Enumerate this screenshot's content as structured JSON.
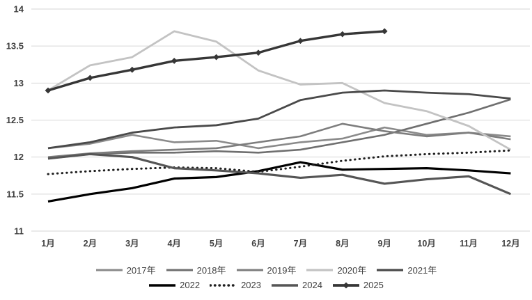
{
  "chart_data": {
    "type": "line",
    "title": "",
    "xlabel": "",
    "ylabel": "",
    "categories": [
      "1月",
      "2月",
      "3月",
      "4月",
      "5月",
      "6月",
      "7月",
      "8月",
      "9月",
      "10月",
      "11月",
      "12月"
    ],
    "y_ticks": [
      "11",
      "11.5",
      "12",
      "12.5",
      "13",
      "13.5",
      "14"
    ],
    "ylim": [
      11,
      14
    ],
    "grid": "horizontal-only",
    "gridline_color": "#d6d6d6",
    "axis_label_color": "#3f3f3f",
    "legend_position": "bottom-two-rows",
    "series": [
      {
        "name": "2017年",
        "color": "#8a8a8a",
        "style": "solid",
        "width": 2.6,
        "marker": "none",
        "legend_row": 1,
        "values": [
          12.12,
          12.18,
          12.3,
          12.2,
          12.22,
          12.12,
          12.2,
          12.25,
          12.4,
          12.3,
          12.33,
          12.28
        ]
      },
      {
        "name": "2018年",
        "color": "#6f6f6f",
        "style": "solid",
        "width": 2.6,
        "marker": "none",
        "legend_row": 1,
        "values": [
          11.98,
          12.04,
          12.06,
          12.06,
          12.08,
          12.06,
          12.1,
          12.2,
          12.3,
          12.45,
          12.6,
          12.78
        ]
      },
      {
        "name": "2019年",
        "color": "#7d7d7d",
        "style": "solid",
        "width": 2.6,
        "marker": "none",
        "legend_row": 1,
        "values": [
          12.0,
          12.05,
          12.08,
          12.1,
          12.12,
          12.2,
          12.28,
          12.45,
          12.35,
          12.28,
          12.33,
          12.24
        ]
      },
      {
        "name": "2020年",
        "color": "#c3c3c3",
        "style": "solid",
        "width": 2.8,
        "marker": "none",
        "legend_row": 1,
        "values": [
          12.9,
          13.24,
          13.35,
          13.7,
          13.56,
          13.17,
          12.98,
          13.0,
          12.73,
          12.62,
          12.42,
          12.1
        ]
      },
      {
        "name": "2021年",
        "color": "#4a4a4a",
        "style": "solid",
        "width": 2.8,
        "marker": "none",
        "legend_row": 1,
        "values": [
          12.12,
          12.2,
          12.33,
          12.4,
          12.43,
          12.52,
          12.77,
          12.87,
          12.9,
          12.87,
          12.85,
          12.79
        ]
      },
      {
        "name": "2022",
        "color": "#000000",
        "style": "solid",
        "width": 3.2,
        "marker": "none",
        "legend_row": 2,
        "values": [
          11.4,
          11.5,
          11.58,
          11.71,
          11.73,
          11.81,
          11.93,
          11.83,
          11.84,
          11.85,
          11.82,
          11.78
        ]
      },
      {
        "name": "2023",
        "color": "#1f1f1f",
        "style": "dotted",
        "width": 3.0,
        "marker": "none",
        "legend_row": 2,
        "values": [
          11.77,
          11.81,
          11.84,
          11.86,
          11.85,
          11.8,
          11.87,
          11.95,
          12.01,
          12.04,
          12.06,
          12.09
        ]
      },
      {
        "name": "2024",
        "color": "#555555",
        "style": "solid",
        "width": 3.2,
        "marker": "none",
        "legend_row": 2,
        "values": [
          11.98,
          12.04,
          12.0,
          11.85,
          11.82,
          11.78,
          11.72,
          11.76,
          11.64,
          11.7,
          11.74,
          11.5
        ]
      },
      {
        "name": "2025",
        "color": "#363636",
        "style": "solid",
        "width": 3.4,
        "marker": "diamond",
        "legend_row": 2,
        "values": [
          12.9,
          13.07,
          13.18,
          13.3,
          13.35,
          13.41,
          13.57,
          13.66,
          13.7
        ]
      }
    ]
  }
}
